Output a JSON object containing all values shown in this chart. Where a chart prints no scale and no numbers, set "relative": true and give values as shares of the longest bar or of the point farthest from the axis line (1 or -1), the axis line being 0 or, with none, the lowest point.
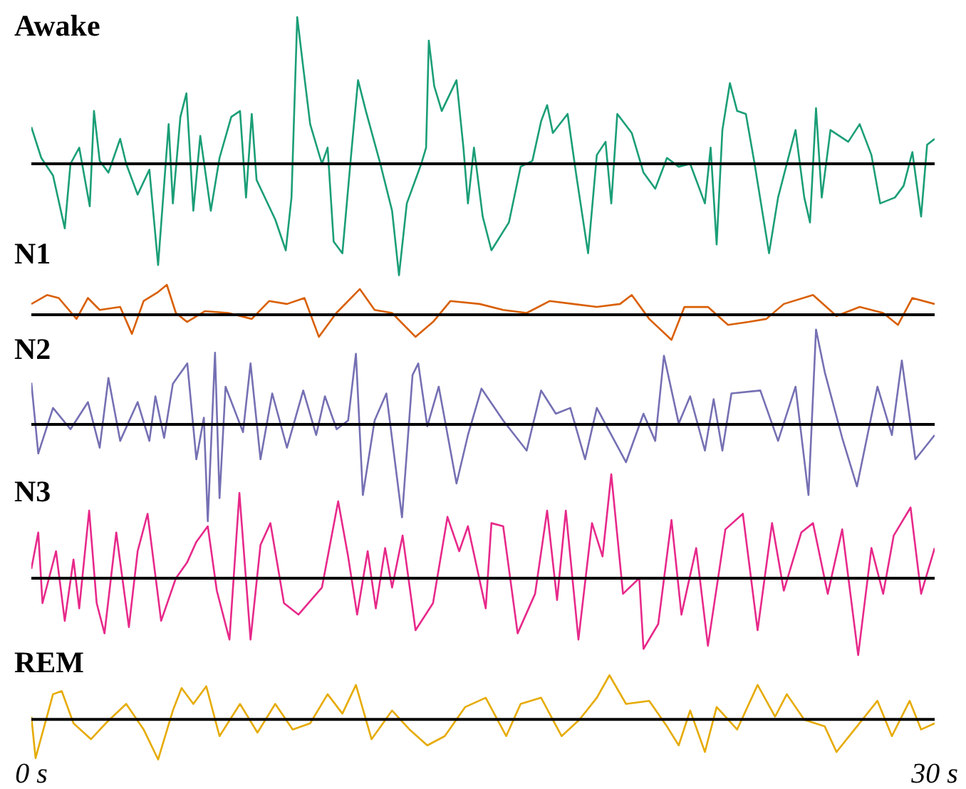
{
  "chart_data": [
    {
      "type": "line",
      "title": "Awake",
      "relative": true,
      "marker": "none",
      "tick_labels": false,
      "xlim": [
        0,
        30
      ],
      "x": [
        0,
        0.33,
        0.72,
        1.11,
        1.3,
        1.59,
        1.94,
        2.08,
        2.27,
        2.56,
        2.95,
        3.15,
        3.53,
        3.92,
        4.21,
        4.56,
        4.7,
        4.95,
        5.15,
        5.38,
        5.61,
        5.96,
        6.25,
        6.64,
        6.93,
        7.13,
        7.32,
        7.48,
        8.1,
        8.45,
        8.64,
        8.83,
        9.01,
        9.26,
        9.65,
        9.84,
        10.04,
        10.33,
        10.62,
        10.85,
        11.11,
        11.59,
        11.98,
        12.21,
        12.47,
        12.95,
        13.11,
        13.2,
        13.38,
        13.63,
        14.12,
        14.35,
        14.5,
        14.7,
        14.99,
        15.28,
        15.86,
        16.25,
        16.64,
        16.93,
        17.13,
        17.32,
        17.81,
        18.1,
        18.49,
        18.78,
        19.07,
        19.26,
        19.46,
        19.94,
        20.33,
        20.72,
        21.11,
        21.5,
        21.88,
        22.37,
        22.56,
        22.76,
        22.95,
        23.2,
        23.44,
        23.73,
        24.02,
        24.5,
        24.8,
        25.38,
        25.67,
        25.86,
        26.06,
        26.25,
        26.54,
        27.13,
        27.51,
        27.9,
        28.19,
        28.68,
        28.97,
        29.26,
        29.55,
        29.75,
        30
      ],
      "series": [
        {
          "color": "#1b9e77",
          "values": [
            0.25,
            0.04,
            -0.08,
            -0.44,
            0,
            0.11,
            -0.29,
            0.36,
            0.02,
            -0.06,
            0.17,
            0,
            -0.21,
            -0.04,
            -0.69,
            0.27,
            -0.27,
            0.32,
            0.48,
            -0.32,
            0.19,
            -0.32,
            0.04,
            0.32,
            0.36,
            -0.23,
            0.34,
            -0.11,
            -0.38,
            -0.59,
            -0.23,
            1,
            0.69,
            0.27,
            0,
            0.11,
            -0.53,
            -0.61,
            0.06,
            0.57,
            0.36,
            0,
            -0.32,
            -0.76,
            -0.27,
            0,
            0.11,
            0.84,
            0.53,
            0.36,
            0.57,
            0.11,
            -0.27,
            0.11,
            -0.36,
            -0.59,
            -0.4,
            -0.02,
            0.02,
            0.29,
            0.4,
            0.21,
            0.34,
            -0.08,
            -0.61,
            0.06,
            0.15,
            -0.27,
            0.34,
            0.21,
            -0.06,
            -0.17,
            0.04,
            -0.02,
            0,
            -0.27,
            0.11,
            -0.55,
            0.23,
            0.55,
            0.36,
            0.34,
            0,
            -0.61,
            -0.23,
            0.23,
            -0.23,
            -0.4,
            0.38,
            -0.23,
            0.23,
            0.15,
            0.27,
            0.06,
            -0.27,
            -0.23,
            -0.15,
            0.08,
            -0.36,
            0.13,
            0.17
          ]
        }
      ]
    },
    {
      "type": "line",
      "title": "N1",
      "relative": true,
      "marker": "none",
      "tick_labels": false,
      "xlim": [
        0,
        30
      ],
      "x": [
        0,
        0.52,
        0.91,
        1.5,
        1.88,
        2.27,
        2.95,
        3.34,
        3.73,
        4.21,
        4.5,
        4.8,
        5.17,
        5.77,
        6.54,
        7.32,
        7.9,
        8.49,
        9.07,
        9.55,
        10.13,
        10.91,
        11.4,
        11.98,
        12.76,
        13.34,
        13.92,
        14.89,
        15.67,
        16.45,
        17.22,
        18,
        18.78,
        19.55,
        19.94,
        20.52,
        21.26,
        21.69,
        22.47,
        23.14,
        23.83,
        24.41,
        24.99,
        25.96,
        26.74,
        27.51,
        28.29,
        28.78,
        29.26,
        30
      ],
      "series": [
        {
          "color": "#d95f02",
          "values": [
            0.36,
            0.66,
            0.56,
            -0.14,
            0.56,
            0.16,
            0.26,
            -0.64,
            0.46,
            0.76,
            1,
            0.06,
            -0.24,
            0.12,
            0.06,
            -0.14,
            0.46,
            0.36,
            0.56,
            -0.74,
            0.06,
            0.86,
            0.16,
            0.06,
            -0.74,
            -0.24,
            0.46,
            0.36,
            0.16,
            0.06,
            0.46,
            0.36,
            0.26,
            0.36,
            0.66,
            -0.14,
            -0.84,
            0.26,
            0.26,
            -0.34,
            -0.24,
            -0.14,
            0.36,
            0.66,
            -0.04,
            0.26,
            0.06,
            -0.34,
            0.56,
            0.36
          ]
        }
      ]
    },
    {
      "type": "line",
      "title": "N2",
      "relative": true,
      "marker": "none",
      "tick_labels": false,
      "xlim": [
        0,
        30
      ],
      "x": [
        0,
        0.23,
        0.72,
        1.3,
        1.88,
        2.27,
        2.56,
        2.95,
        3.53,
        3.92,
        4.12,
        4.41,
        4.7,
        5.18,
        5.48,
        5.73,
        5.86,
        6.1,
        6.25,
        6.45,
        7.03,
        7.28,
        7.61,
        8,
        8.49,
        9.03,
        9.46,
        9.75,
        10.14,
        10.52,
        10.78,
        11.01,
        11.4,
        11.79,
        12.31,
        12.66,
        12.85,
        13.15,
        13.53,
        14.12,
        14.5,
        14.95,
        15.67,
        16.45,
        16.93,
        17.42,
        17.9,
        18.39,
        18.78,
        19.75,
        20.33,
        20.72,
        21.01,
        21.5,
        21.88,
        22.37,
        22.66,
        22.95,
        23.25,
        24.21,
        24.8,
        25.38,
        25.81,
        26.06,
        26.35,
        26.93,
        27.42,
        28.1,
        28.58,
        28.91,
        29.36,
        30
      ],
      "series": [
        {
          "color": "#7570b3",
          "values": [
            0.43,
            -0.3,
            0.17,
            -0.05,
            0.23,
            -0.24,
            0.48,
            -0.17,
            0.23,
            -0.17,
            0.29,
            -0.14,
            0.42,
            0.63,
            -0.36,
            0.07,
            -1,
            0.74,
            -0.76,
            0.39,
            -0.08,
            0.63,
            -0.36,
            0.32,
            -0.24,
            0.35,
            -0.11,
            0.29,
            -0.05,
            0.04,
            0.73,
            -0.73,
            0.04,
            0.32,
            -0.96,
            0.51,
            0.63,
            -0.02,
            0.39,
            -0.61,
            -0.11,
            0.37,
            0.04,
            -0.27,
            0.35,
            0.11,
            0.17,
            -0.36,
            0.17,
            -0.39,
            0.11,
            -0.17,
            0.71,
            0.01,
            0.29,
            -0.27,
            0.26,
            -0.27,
            0.32,
            0.35,
            -0.17,
            0.39,
            -0.73,
            0.98,
            0.54,
            -0.14,
            -0.64,
            0.39,
            -0.11,
            0.66,
            -0.36,
            -0.11
          ]
        }
      ]
    },
    {
      "type": "line",
      "title": "N3",
      "relative": true,
      "marker": "none",
      "tick_labels": false,
      "xlim": [
        0,
        30
      ],
      "x": [
        0,
        0.23,
        0.37,
        0.82,
        1.11,
        1.4,
        1.59,
        1.92,
        2.17,
        2.43,
        2.82,
        3.24,
        3.53,
        3.86,
        4.31,
        4.8,
        5.17,
        5.48,
        5.86,
        6.16,
        6.58,
        6.91,
        7.28,
        7.61,
        7.94,
        8.39,
        8.87,
        9.65,
        10.19,
        10.52,
        10.82,
        11.17,
        11.44,
        11.75,
        11.98,
        12.33,
        12.76,
        13.34,
        13.82,
        14.21,
        14.5,
        15.09,
        15.28,
        15.67,
        16.15,
        16.73,
        17.13,
        17.46,
        17.75,
        18.17,
        18.62,
        18.97,
        19.26,
        19.65,
        20.19,
        20.33,
        20.82,
        21.26,
        21.59,
        22.08,
        22.47,
        23.05,
        23.63,
        24.12,
        24.6,
        24.99,
        25.57,
        25.96,
        26.45,
        26.93,
        27.46,
        27.9,
        28.29,
        28.64,
        29.2,
        29.55,
        30
      ],
      "series": [
        {
          "color": "#e7298a",
          "values": [
            0.09,
            0.44,
            -0.24,
            0.26,
            -0.41,
            0.18,
            -0.29,
            0.65,
            -0.24,
            -0.53,
            0.44,
            -0.47,
            0.26,
            0.62,
            -0.41,
            0,
            0.15,
            0.35,
            0.5,
            -0.12,
            -0.59,
            0.82,
            -0.59,
            0.32,
            0.53,
            -0.24,
            -0.35,
            -0.09,
            0.74,
            0.21,
            -0.35,
            0.26,
            -0.29,
            0.29,
            -0.09,
            0.41,
            -0.5,
            -0.24,
            0.59,
            0.26,
            0.5,
            -0.29,
            0.53,
            0.5,
            -0.53,
            -0.15,
            0.65,
            -0.21,
            0.65,
            -0.59,
            0.53,
            0.21,
            1,
            -0.15,
            0,
            -0.68,
            -0.44,
            0.56,
            -0.35,
            0.29,
            -0.65,
            0.47,
            0.62,
            -0.5,
            0.53,
            -0.12,
            0.44,
            0.53,
            -0.15,
            0.47,
            -0.74,
            0.29,
            -0.15,
            0.41,
            0.68,
            -0.15,
            0.29
          ]
        }
      ]
    },
    {
      "type": "line",
      "title": "REM",
      "relative": true,
      "marker": "none",
      "tick_labels": "x",
      "xlim": [
        0,
        30
      ],
      "xticks": [
        {
          "value": 0,
          "label": "0 s"
        },
        {
          "value": 30,
          "label": "30 s"
        }
      ],
      "x": [
        0,
        0.14,
        0.72,
        1.01,
        1.4,
        1.98,
        2.47,
        3.15,
        3.73,
        4.21,
        4.7,
        4.99,
        5.38,
        5.81,
        6.25,
        6.93,
        7.51,
        8.1,
        8.68,
        9.26,
        9.84,
        10.33,
        10.78,
        11.3,
        11.98,
        12.56,
        13.15,
        13.73,
        14.41,
        15.09,
        15.77,
        16.25,
        16.93,
        17.61,
        18.2,
        18.78,
        19.2,
        19.75,
        20.52,
        21.11,
        21.5,
        21.88,
        22.37,
        22.76,
        23.44,
        24.12,
        24.7,
        25.09,
        25.67,
        26.35,
        26.74,
        27.42,
        28.1,
        28.58,
        29.17,
        29.55,
        30
      ],
      "series": [
        {
          "color": "#e6ab02",
          "values": [
            0.06,
            -0.88,
            0.57,
            0.64,
            -0.09,
            -0.45,
            -0.09,
            0.35,
            -0.23,
            -0.91,
            0.2,
            0.71,
            0.35,
            0.75,
            -0.38,
            0.35,
            -0.3,
            0.35,
            -0.23,
            -0.09,
            0.57,
            0.13,
            0.78,
            -0.45,
            0.2,
            -0.23,
            -0.59,
            -0.38,
            0.28,
            0.49,
            -0.38,
            0.35,
            0.49,
            -0.38,
            -0.01,
            0.49,
            1,
            0.35,
            0.42,
            -0.16,
            -0.59,
            0.2,
            -0.74,
            0.28,
            -0.23,
            0.78,
            0.06,
            0.57,
            -0.01,
            -0.16,
            -0.74,
            -0.16,
            0.42,
            -0.38,
            0.42,
            -0.23,
            -0.09
          ]
        }
      ]
    }
  ]
}
